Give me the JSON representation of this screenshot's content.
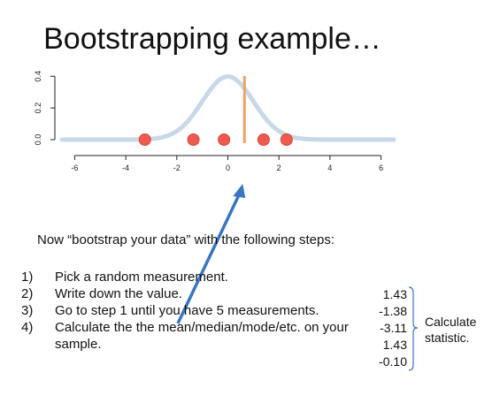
{
  "slide": {
    "title": "Bootstrapping example…",
    "intro": "Now “bootstrap your data” with the following steps:",
    "steps": [
      {
        "number": "1)",
        "text": "Pick a random measurement."
      },
      {
        "number": "2)",
        "text": "Write down the value."
      },
      {
        "number": "3)",
        "text": "Go to step 1 until you have 5 measurements."
      },
      {
        "number": "4)",
        "text": "Calculate the the mean/median/mode/etc. on your",
        "continuation": "sample."
      }
    ],
    "sampled_values": [
      "1.43",
      "-1.38",
      "-3.11",
      "1.43",
      "-0.10"
    ],
    "statistic_label": [
      "Calculate",
      "statistic."
    ]
  },
  "chart_data": {
    "type": "line",
    "x_ticks": [
      -6,
      -4,
      -2,
      0,
      2,
      4,
      6
    ],
    "y_ticks": [
      0.0,
      0.2,
      0.4
    ],
    "y_tick_labels": [
      "0.0",
      "0.2",
      "0.4"
    ],
    "xlim": [
      -6.5,
      6.5
    ],
    "ylim": [
      0,
      0.48
    ],
    "curve": "standard normal density",
    "curve_color": "#c8d8e8",
    "points_x": [
      -3.25,
      -1.35,
      -0.15,
      1.4,
      2.3
    ],
    "points_y": [
      0,
      0,
      0,
      0,
      0
    ],
    "point_color": "#ee5a4f",
    "marker_line_x": 0.65,
    "marker_line_color": "#f0a060",
    "arrow_color": "#3a75c4"
  },
  "colors": {
    "text": "#111111",
    "axis": "#222222",
    "background": "#ffffff"
  }
}
